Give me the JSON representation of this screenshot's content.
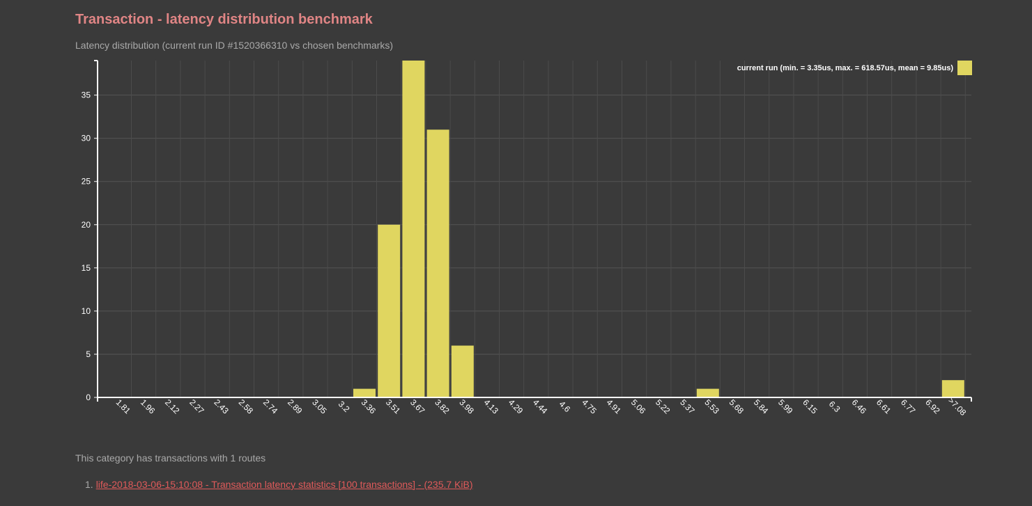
{
  "header": {
    "title": "Transaction - latency distribution benchmark",
    "subtitle": "Latency distribution (current run ID #1520366310 vs chosen benchmarks)"
  },
  "chart_data": {
    "type": "bar",
    "categories": [
      "1.81",
      "1.96",
      "2.12",
      "2.27",
      "2.43",
      "2.58",
      "2.74",
      "2.89",
      "3.05",
      "3.2",
      "3.36",
      "3.51",
      "3.67",
      "3.82",
      "3.98",
      "4.13",
      "4.29",
      "4.44",
      "4.6",
      "4.75",
      "4.91",
      "5.06",
      "5.22",
      "5.37",
      "5.53",
      "5.68",
      "5.84",
      "5.99",
      "6.15",
      "6.3",
      "6.46",
      "6.61",
      "6.77",
      "6.92",
      ">7.08"
    ],
    "series": [
      {
        "name": "current run (min. = 3.35us, max. = 618.57us, mean = 9.85us)",
        "color": "#e0d660",
        "values": [
          0,
          0,
          0,
          0,
          0,
          0,
          0,
          0,
          0,
          0,
          1,
          20,
          39,
          31,
          6,
          0,
          0,
          0,
          0,
          0,
          0,
          0,
          0,
          0,
          1,
          0,
          0,
          0,
          0,
          0,
          0,
          0,
          0,
          0,
          2
        ]
      }
    ],
    "yticks": [
      0,
      5,
      10,
      15,
      20,
      25,
      30,
      35
    ],
    "ylim": [
      0,
      39
    ],
    "grid": true,
    "legend_position": "top-right"
  },
  "footer": {
    "routes_note": "This category has transactions with 1 routes",
    "routes": [
      {
        "number": "1.",
        "label": "life-2018-03-06-15:10:08 - Transaction latency statistics [100 transactions] - (235.7 KiB)"
      }
    ]
  },
  "colors": {
    "background": "#3a3a3a",
    "title": "#e08585",
    "bar": "#e0d660",
    "link": "#e05a5a"
  }
}
